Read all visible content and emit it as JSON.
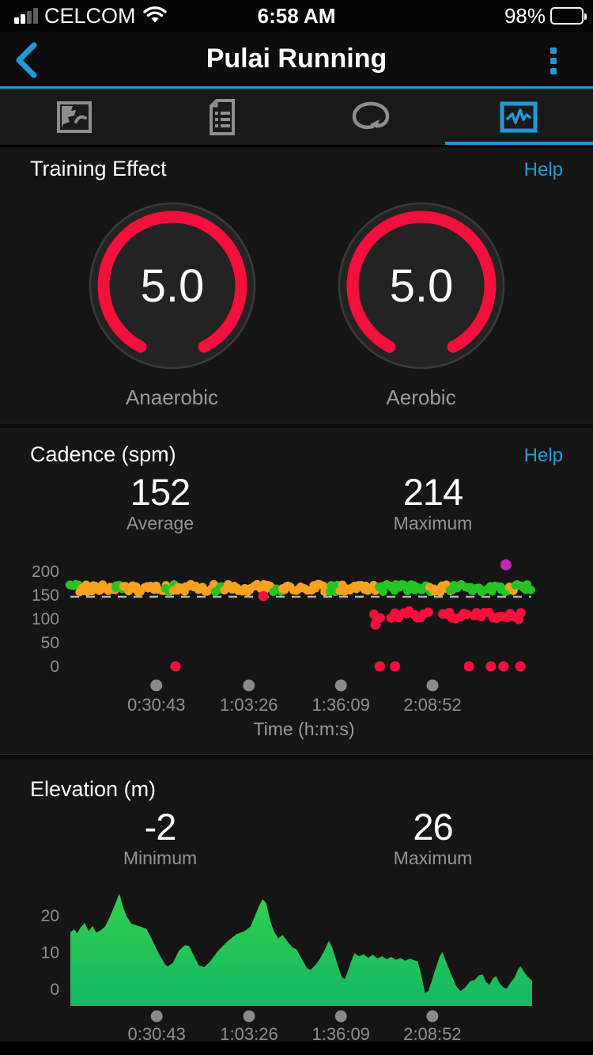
{
  "status_bar": {
    "carrier": "CELCOM",
    "time": "6:58 AM",
    "battery_percent": "98%"
  },
  "nav": {
    "title": "Pulai Running",
    "back_icon": "chevron-left",
    "menu_icon": "kebab-vertical"
  },
  "tabs": [
    {
      "name": "map",
      "icon": "map-icon",
      "selected": false
    },
    {
      "name": "details",
      "icon": "document-list-icon",
      "selected": false
    },
    {
      "name": "laps",
      "icon": "loop-arrow-icon",
      "selected": false
    },
    {
      "name": "charts",
      "icon": "waveform-chart-icon",
      "selected": true
    }
  ],
  "colors": {
    "accent_blue": "#1e9bd7",
    "gauge_red": "#f50f3c",
    "dot_orange": "#f6a21f",
    "dot_green": "#25c425",
    "dot_red": "#fa0f3c",
    "dot_magenta": "#c827b4",
    "axis_gray": "#8f8f8f",
    "elev_top": "#32d04e",
    "elev_bottom": "#14b863"
  },
  "sections": {
    "training_effect": {
      "title": "Training Effect",
      "help": "Help",
      "gauges": [
        {
          "value": "5.0",
          "label": "Anaerobic"
        },
        {
          "value": "5.0",
          "label": "Aerobic"
        }
      ]
    },
    "cadence": {
      "title": "Cadence (spm)",
      "help": "Help",
      "stats": [
        {
          "value": "152",
          "label": "Average"
        },
        {
          "value": "214",
          "label": "Maximum"
        }
      ]
    },
    "elevation": {
      "title": "Elevation (m)",
      "stats": [
        {
          "value": "-2",
          "label": "Minimum"
        },
        {
          "value": "26",
          "label": "Maximum"
        }
      ]
    }
  },
  "chart_data": [
    {
      "type": "scatter",
      "title": "Cadence (spm)",
      "xlabel": "Time (h:m:s)",
      "x_ticks": [
        {
          "label": "0:30:43",
          "f": 0.184
        },
        {
          "label": "1:03:26",
          "f": 0.382
        },
        {
          "label": "1:36:09",
          "f": 0.579
        },
        {
          "label": "2:08:52",
          "f": 0.775
        }
      ],
      "y_ticks": [
        200,
        150,
        100,
        50,
        0
      ],
      "ylim": [
        0,
        230
      ],
      "dashed_line": 150,
      "average": 152,
      "maximum": 214,
      "band_value": 165,
      "band_segments": [
        {
          "t0": 0.0,
          "t1": 0.018,
          "color": "green"
        },
        {
          "t0": 0.018,
          "t1": 0.095,
          "color": "orange"
        },
        {
          "t0": 0.095,
          "t1": 0.115,
          "color": "green"
        },
        {
          "t0": 0.115,
          "t1": 0.205,
          "color": "orange"
        },
        {
          "t0": 0.205,
          "t1": 0.222,
          "color": "green"
        },
        {
          "t0": 0.222,
          "t1": 0.31,
          "color": "orange"
        },
        {
          "t0": 0.31,
          "t1": 0.33,
          "color": "green"
        },
        {
          "t0": 0.33,
          "t1": 0.435,
          "color": "orange"
        },
        {
          "t0": 0.435,
          "t1": 0.452,
          "color": "green"
        },
        {
          "t0": 0.452,
          "t1": 0.555,
          "color": "orange"
        },
        {
          "t0": 0.555,
          "t1": 0.575,
          "color": "green"
        },
        {
          "t0": 0.575,
          "t1": 0.66,
          "color": "orange"
        },
        {
          "t0": 0.66,
          "t1": 0.77,
          "color": "green"
        },
        {
          "t0": 0.77,
          "t1": 0.812,
          "color": "orange"
        },
        {
          "t0": 0.812,
          "t1": 0.94,
          "color": "green"
        },
        {
          "t0": 0.94,
          "t1": 0.952,
          "color": "orange"
        },
        {
          "t0": 0.952,
          "t1": 0.985,
          "color": "green"
        }
      ],
      "low_segments": [
        {
          "t0": 0.648,
          "t1": 0.664,
          "v": 107
        },
        {
          "t0": 0.688,
          "t1": 0.766,
          "v": 109
        },
        {
          "t0": 0.795,
          "t1": 0.85,
          "v": 107
        },
        {
          "t0": 0.863,
          "t1": 0.965,
          "v": 106
        }
      ],
      "outliers": [
        {
          "f": 0.225,
          "v": 0,
          "c": "red"
        },
        {
          "f": 0.413,
          "v": 148,
          "c": "red"
        },
        {
          "f": 0.653,
          "v": 88,
          "c": "red"
        },
        {
          "f": 0.662,
          "v": 0,
          "c": "red"
        },
        {
          "f": 0.695,
          "v": 0,
          "c": "red"
        },
        {
          "f": 0.853,
          "v": 0,
          "c": "red"
        },
        {
          "f": 0.9,
          "v": 0,
          "c": "red"
        },
        {
          "f": 0.927,
          "v": 0,
          "c": "red"
        },
        {
          "f": 0.963,
          "v": 0,
          "c": "red"
        },
        {
          "f": 0.932,
          "v": 214,
          "c": "magenta"
        }
      ]
    },
    {
      "type": "area",
      "title": "Elevation (m)",
      "xlabel": "",
      "x_ticks": [
        {
          "label": "0:30:43",
          "f": 0.187
        },
        {
          "label": "1:03:26",
          "f": 0.387
        },
        {
          "label": "1:36:09",
          "f": 0.586
        },
        {
          "label": "2:08:52",
          "f": 0.784
        }
      ],
      "y_ticks": [
        20,
        10,
        0
      ],
      "ylim": [
        -4,
        28
      ],
      "minimum": -2,
      "maximum": 26,
      "points": [
        [
          0.0,
          15.5
        ],
        [
          0.008,
          16.3
        ],
        [
          0.015,
          15.2
        ],
        [
          0.022,
          16.8
        ],
        [
          0.031,
          18.0
        ],
        [
          0.04,
          15.8
        ],
        [
          0.048,
          17.2
        ],
        [
          0.056,
          15.4
        ],
        [
          0.065,
          16.0
        ],
        [
          0.075,
          17.0
        ],
        [
          0.085,
          19.5
        ],
        [
          0.095,
          22.5
        ],
        [
          0.106,
          26.0
        ],
        [
          0.115,
          22.0
        ],
        [
          0.122,
          19.8
        ],
        [
          0.132,
          17.8
        ],
        [
          0.14,
          17.5
        ],
        [
          0.152,
          17.0
        ],
        [
          0.165,
          16.4
        ],
        [
          0.175,
          14.0
        ],
        [
          0.19,
          10.0
        ],
        [
          0.205,
          6.8
        ],
        [
          0.211,
          6.2
        ],
        [
          0.222,
          7.2
        ],
        [
          0.235,
          10.5
        ],
        [
          0.248,
          12.0
        ],
        [
          0.257,
          11.8
        ],
        [
          0.266,
          9.5
        ],
        [
          0.278,
          6.5
        ],
        [
          0.29,
          6.0
        ],
        [
          0.302,
          7.5
        ],
        [
          0.32,
          10.5
        ],
        [
          0.34,
          13.0
        ],
        [
          0.36,
          15.0
        ],
        [
          0.377,
          15.8
        ],
        [
          0.39,
          17.0
        ],
        [
          0.4,
          20.0
        ],
        [
          0.408,
          22.5
        ],
        [
          0.416,
          24.5
        ],
        [
          0.424,
          23.5
        ],
        [
          0.432,
          19.0
        ],
        [
          0.44,
          16.0
        ],
        [
          0.45,
          13.8
        ],
        [
          0.46,
          14.8
        ],
        [
          0.47,
          13.0
        ],
        [
          0.48,
          11.5
        ],
        [
          0.49,
          10.8
        ],
        [
          0.502,
          8.0
        ],
        [
          0.512,
          5.8
        ],
        [
          0.52,
          5.2
        ],
        [
          0.53,
          6.5
        ],
        [
          0.54,
          8.2
        ],
        [
          0.55,
          10.5
        ],
        [
          0.56,
          13.2
        ],
        [
          0.568,
          11.0
        ],
        [
          0.578,
          7.0
        ],
        [
          0.588,
          3.2
        ],
        [
          0.595,
          2.8
        ],
        [
          0.605,
          6.5
        ],
        [
          0.615,
          9.8
        ],
        [
          0.625,
          9.0
        ],
        [
          0.635,
          9.5
        ],
        [
          0.645,
          8.6
        ],
        [
          0.655,
          9.4
        ],
        [
          0.665,
          8.4
        ],
        [
          0.675,
          9.0
        ],
        [
          0.685,
          8.2
        ],
        [
          0.695,
          8.8
        ],
        [
          0.705,
          8.0
        ],
        [
          0.715,
          8.5
        ],
        [
          0.725,
          7.8
        ],
        [
          0.735,
          8.3
        ],
        [
          0.745,
          7.9
        ],
        [
          0.752,
          7.6
        ],
        [
          0.76,
          4.0
        ],
        [
          0.768,
          -1.0
        ],
        [
          0.775,
          -0.5
        ],
        [
          0.782,
          2.0
        ],
        [
          0.792,
          6.0
        ],
        [
          0.8,
          9.0
        ],
        [
          0.806,
          10.2
        ],
        [
          0.812,
          8.0
        ],
        [
          0.82,
          5.5
        ],
        [
          0.828,
          3.0
        ],
        [
          0.836,
          0.8
        ],
        [
          0.845,
          -0.5
        ],
        [
          0.855,
          0.5
        ],
        [
          0.866,
          2.2
        ],
        [
          0.876,
          2.6
        ],
        [
          0.885,
          3.8
        ],
        [
          0.893,
          4.0
        ],
        [
          0.9,
          2.0
        ],
        [
          0.908,
          1.2
        ],
        [
          0.915,
          3.0
        ],
        [
          0.922,
          3.6
        ],
        [
          0.93,
          1.5
        ],
        [
          0.938,
          0.5
        ],
        [
          0.945,
          0.2
        ],
        [
          0.953,
          1.8
        ],
        [
          0.962,
          3.2
        ],
        [
          0.97,
          5.5
        ],
        [
          0.975,
          6.3
        ],
        [
          0.982,
          4.8
        ],
        [
          0.99,
          3.5
        ],
        [
          1.0,
          2.3
        ]
      ]
    }
  ]
}
